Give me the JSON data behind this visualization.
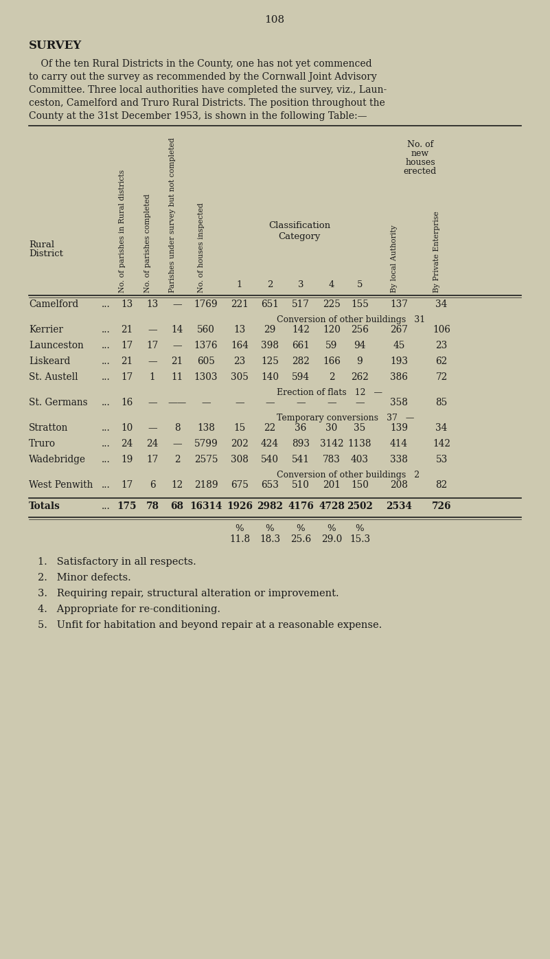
{
  "page_number": "108",
  "bg_color": "#cdc9b0",
  "title": "SURVEY",
  "intro_lines": [
    "    Of the ten Rural Districts in the County, one has not yet commenced",
    "to carry out the survey as recommended by the Cornwall Joint Advisory",
    "Committee. Three local authorities have completed the survey, viz., Laun-",
    "ceston, Camelford and Truro Rural Districts. The position throughout the",
    "County at the 31st December 1953, is shown in the following Table:—"
  ],
  "col_x": {
    "district": 42,
    "dots": 148,
    "c1": 185,
    "c2": 222,
    "c3": 258,
    "c4": 300,
    "cat1": 349,
    "cat2": 393,
    "cat3": 438,
    "cat4": 483,
    "cat5": 524,
    "auth": 581,
    "priv": 643
  },
  "rows": [
    {
      "district": "Camelford",
      "c1": "13",
      "c2": "13",
      "c3": "—",
      "c4": "1769",
      "cat1": "221",
      "cat2": "651",
      "cat3": "517",
      "cat4": "225",
      "cat5": "155",
      "auth": "137",
      "priv": "34",
      "note": "Conversion of other buildings   31",
      "note_right": true
    },
    {
      "district": "Kerrier",
      "c1": "21",
      "c2": "—",
      "c3": "14",
      "c4": "560",
      "cat1": "13",
      "cat2": "29",
      "cat3": "142",
      "cat4": "120",
      "cat5": "256",
      "auth": "267",
      "priv": "106",
      "note": null,
      "note_right": false
    },
    {
      "district": "Launceston",
      "c1": "17",
      "c2": "17",
      "c3": "—",
      "c4": "1376",
      "cat1": "164",
      "cat2": "398",
      "cat3": "661",
      "cat4": "59",
      "cat5": "94",
      "auth": "45",
      "priv": "23",
      "note": null,
      "note_right": false
    },
    {
      "district": "Liskeard",
      "c1": "21",
      "c2": "—",
      "c3": "21",
      "c4": "605",
      "cat1": "23",
      "cat2": "125",
      "cat3": "282",
      "cat4": "166",
      "cat5": "9",
      "auth": "193",
      "priv": "62",
      "note": null,
      "note_right": false
    },
    {
      "district": "St. Austell",
      "c1": "17",
      "c2": "1",
      "c3": "11",
      "c4": "1303",
      "cat1": "305",
      "cat2": "140",
      "cat3": "594",
      "cat4": "2",
      "cat5": "262",
      "auth": "386",
      "priv": "72",
      "note": "Erection of flats   12   —",
      "note_right": false
    },
    {
      "district": "St. Germans",
      "c1": "16",
      "c2": "—",
      "c3": "——",
      "c4": "—",
      "cat1": "—",
      "cat2": "—",
      "cat3": "—",
      "cat4": "—",
      "cat5": "—",
      "auth": "358",
      "priv": "85",
      "note": "Temporary conversions   37   —",
      "note_right": false
    },
    {
      "district": "Stratton",
      "c1": "10",
      "c2": "—",
      "c3": "8",
      "c4": "138",
      "cat1": "15",
      "cat2": "22",
      "cat3": "36",
      "cat4": "30",
      "cat5": "35",
      "auth": "139",
      "priv": "34",
      "note": null,
      "note_right": false
    },
    {
      "district": "Truro",
      "c1": "24",
      "c2": "24",
      "c3": "—",
      "c4": "5799",
      "cat1": "202",
      "cat2": "424",
      "cat3": "893",
      "cat4": "3142",
      "cat5": "1138",
      "auth": "414",
      "priv": "142",
      "note": null,
      "note_right": false
    },
    {
      "district": "Wadebridge",
      "c1": "19",
      "c2": "17",
      "c3": "2",
      "c4": "2575",
      "cat1": "308",
      "cat2": "540",
      "cat3": "541",
      "cat4": "783",
      "cat5": "403",
      "auth": "338",
      "priv": "53",
      "note": "Conversion of other buildings   2",
      "note_right": true
    },
    {
      "district": "West Penwith",
      "c1": "17",
      "c2": "6",
      "c3": "12",
      "c4": "2189",
      "cat1": "675",
      "cat2": "653",
      "cat3": "510",
      "cat4": "201",
      "cat5": "150",
      "auth": "208",
      "priv": "82",
      "note": null,
      "note_right": false
    }
  ],
  "totals": {
    "c1": "175",
    "c2": "78",
    "c3": "68",
    "c4": "16314",
    "cat1": "1926",
    "cat2": "2982",
    "cat3": "4176",
    "cat4": "4728",
    "cat5": "2502",
    "auth": "2534",
    "priv": "726"
  },
  "percentages": [
    {
      "label": "%",
      "cat1": "%",
      "cat2": "%",
      "cat3": "%",
      "cat4": "%",
      "cat5": "%"
    },
    {
      "label": "",
      "cat1": "11.8",
      "cat2": "18.3",
      "cat3": "25.6",
      "cat4": "29.0",
      "cat5": "15.3"
    }
  ],
  "footnotes": [
    "1.   Satisfactory in all respects.",
    "2.   Minor defects.",
    "3.   Requiring repair, structural alteration or improvement.",
    "4.   Appropriate for re-conditioning.",
    "5.   Unfit for habitation and beyond repair at a reasonable expense."
  ]
}
